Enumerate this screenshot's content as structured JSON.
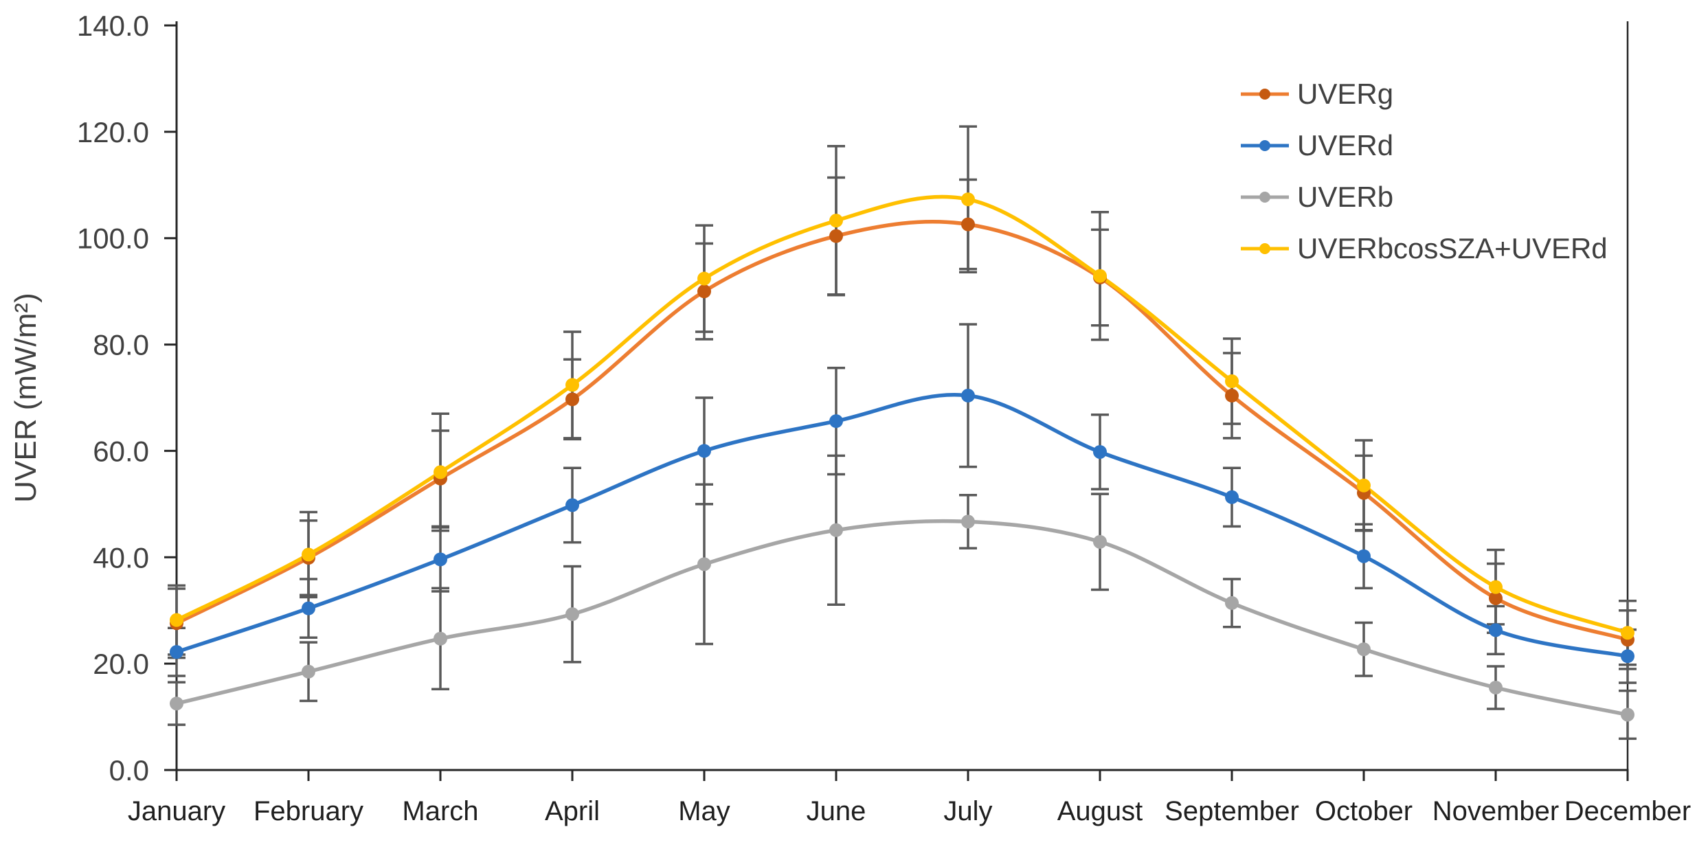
{
  "chart_data": {
    "type": "line",
    "title": "",
    "xlabel": "",
    "ylabel": "UVER (mW/m²)",
    "ylim": [
      0,
      140
    ],
    "ytick_step": 20,
    "ytick_labels": [
      "0.0",
      "20.0",
      "40.0",
      "60.0",
      "80.0",
      "100.0",
      "120.0",
      "140.0"
    ],
    "categories": [
      "January",
      "February",
      "March",
      "April",
      "May",
      "June",
      "July",
      "August",
      "September",
      "October",
      "November",
      "December"
    ],
    "grid": false,
    "legend_position": "top-right",
    "axis_color": "#262626",
    "tick_text_color": "#404040",
    "month_text_color": "#1f1f1f",
    "error_bar_color": "#595959",
    "series": [
      {
        "name": "UVERg",
        "color": "#ED7D31",
        "marker_color": "#C55A11",
        "values": [
          27.6,
          39.9,
          54.8,
          69.7,
          90.0,
          100.4,
          102.6,
          92.6,
          70.4,
          52.1,
          32.3,
          24.5
        ],
        "errors": [
          6.5,
          7.0,
          9.0,
          7.5,
          9.0,
          11.0,
          8.4,
          9.0,
          8.0,
          7.0,
          6.5,
          5.5
        ]
      },
      {
        "name": "UVERd",
        "color": "#2D74C4",
        "marker_color": "#2D74C4",
        "values": [
          22.2,
          30.4,
          39.6,
          49.8,
          60.0,
          65.6,
          70.4,
          59.8,
          51.3,
          40.2,
          26.3,
          21.4
        ],
        "errors": [
          4.5,
          5.5,
          6.0,
          7.0,
          10.0,
          10.0,
          13.4,
          7.0,
          5.5,
          6.0,
          4.5,
          5.0
        ]
      },
      {
        "name": "UVERb",
        "color": "#A6A6A6",
        "marker_color": "#A6A6A6",
        "values": [
          12.5,
          18.5,
          24.7,
          29.3,
          38.7,
          45.1,
          46.7,
          42.9,
          31.4,
          22.7,
          15.5,
          10.4
        ],
        "errors": [
          4.0,
          5.5,
          9.5,
          9.0,
          15.0,
          14.0,
          5.0,
          9.0,
          4.5,
          5.0,
          4.0,
          4.5
        ]
      },
      {
        "name": "UVERbcosSZA+UVERd",
        "color": "#FFC000",
        "marker_color": "#FFC000",
        "values": [
          28.2,
          40.5,
          56.0,
          72.4,
          92.4,
          103.3,
          107.3,
          92.9,
          73.1,
          53.5,
          34.4,
          25.8
        ],
        "errors": [
          6.5,
          8.0,
          11.0,
          10.0,
          10.0,
          14.0,
          13.7,
          12.0,
          8.0,
          8.5,
          7.0,
          6.0
        ]
      }
    ]
  }
}
